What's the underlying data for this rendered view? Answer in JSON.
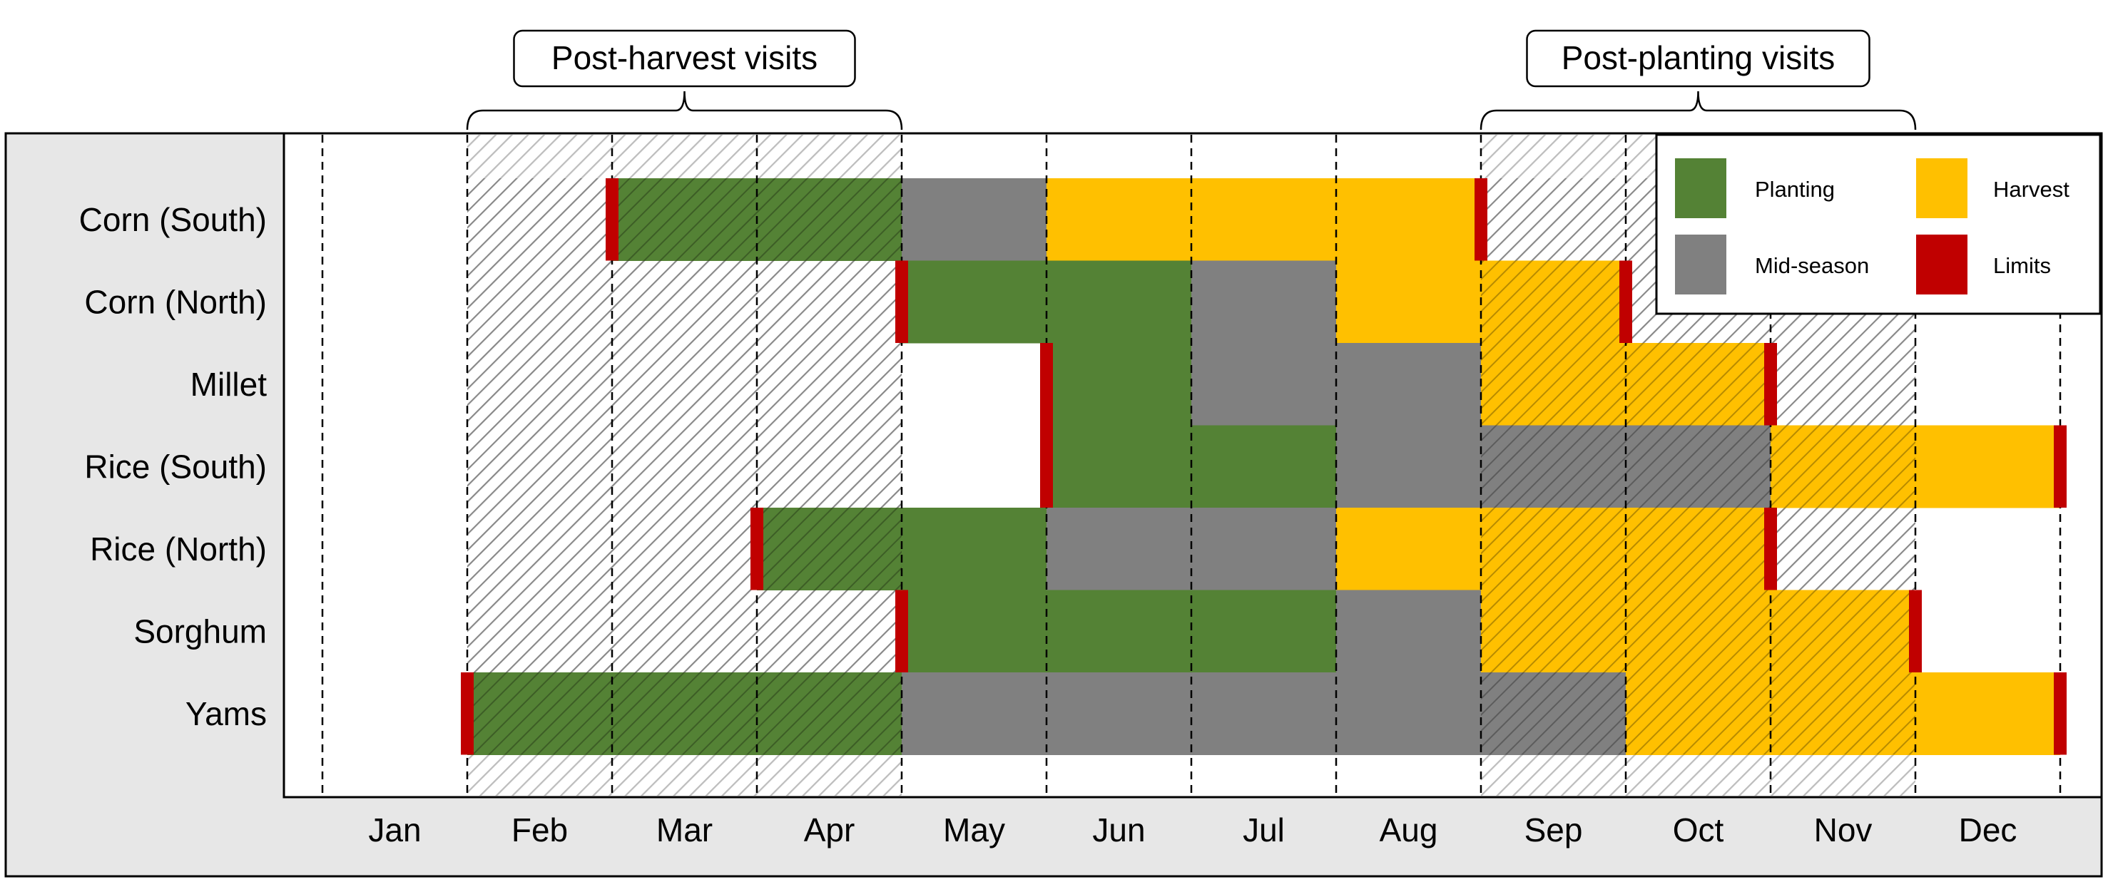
{
  "chart_data": {
    "type": "gantt",
    "months": [
      "Jan",
      "Feb",
      "Mar",
      "Apr",
      "May",
      "Jun",
      "Jul",
      "Aug",
      "Sep",
      "Oct",
      "Nov",
      "Dec"
    ],
    "crops": [
      "Corn (South)",
      "Corn (North)",
      "Millet",
      "Rice (South)",
      "Rice (North)",
      "Sorghum",
      "Yams"
    ],
    "phases": {
      "planting": {
        "label": "Planting",
        "color": "#548235"
      },
      "midseason": {
        "label": "Mid-season",
        "color": "#808080"
      },
      "harvest": {
        "label": "Harvest",
        "color": "#FFC000"
      },
      "limits": {
        "label": "Limits",
        "color": "#C00000"
      }
    },
    "schedule": [
      {
        "crop": "Corn (South)",
        "segments": [
          {
            "phase": "planting",
            "start": 3.0,
            "end": 5.0
          },
          {
            "phase": "midseason",
            "start": 5.0,
            "end": 6.0
          },
          {
            "phase": "harvest",
            "start": 6.0,
            "end": 9.0
          }
        ],
        "limits": [
          3.0,
          9.0
        ]
      },
      {
        "crop": "Corn (North)",
        "segments": [
          {
            "phase": "planting",
            "start": 5.0,
            "end": 7.0
          },
          {
            "phase": "midseason",
            "start": 7.0,
            "end": 8.0
          },
          {
            "phase": "harvest",
            "start": 8.0,
            "end": 10.0
          }
        ],
        "limits": [
          5.0,
          10.0
        ]
      },
      {
        "crop": "Millet",
        "segments": [
          {
            "phase": "planting",
            "start": 6.0,
            "end": 7.0
          },
          {
            "phase": "midseason",
            "start": 7.0,
            "end": 9.0
          },
          {
            "phase": "harvest",
            "start": 9.0,
            "end": 11.0
          }
        ],
        "limits": [
          6.0,
          11.0
        ]
      },
      {
        "crop": "Rice (South)",
        "segments": [
          {
            "phase": "planting",
            "start": 6.0,
            "end": 8.0
          },
          {
            "phase": "midseason",
            "start": 8.0,
            "end": 11.0
          },
          {
            "phase": "harvest",
            "start": 11.0,
            "end": 13.0
          }
        ],
        "limits": [
          6.0,
          13.0
        ]
      },
      {
        "crop": "Rice (North)",
        "segments": [
          {
            "phase": "planting",
            "start": 4.0,
            "end": 6.0
          },
          {
            "phase": "midseason",
            "start": 6.0,
            "end": 8.0
          },
          {
            "phase": "harvest",
            "start": 8.0,
            "end": 11.0
          }
        ],
        "limits": [
          4.0,
          11.0
        ]
      },
      {
        "crop": "Sorghum",
        "segments": [
          {
            "phase": "planting",
            "start": 5.0,
            "end": 8.0
          },
          {
            "phase": "midseason",
            "start": 8.0,
            "end": 9.0
          },
          {
            "phase": "harvest",
            "start": 9.0,
            "end": 12.0
          }
        ],
        "limits": [
          5.0,
          12.0
        ]
      },
      {
        "crop": "Yams",
        "segments": [
          {
            "phase": "planting",
            "start": 2.0,
            "end": 5.0
          },
          {
            "phase": "midseason",
            "start": 5.0,
            "end": 10.0
          },
          {
            "phase": "harvest",
            "start": 10.0,
            "end": 13.0
          }
        ],
        "limits": [
          2.0,
          13.0
        ]
      }
    ],
    "visit_windows": [
      {
        "label": "Post-harvest visits",
        "start": 2.0,
        "end": 5.0
      },
      {
        "label": "Post-planting visits",
        "start": 9.0,
        "end": 12.0
      }
    ],
    "legend_position": "top-right",
    "xlim": [
      0.75,
      13.0
    ]
  }
}
